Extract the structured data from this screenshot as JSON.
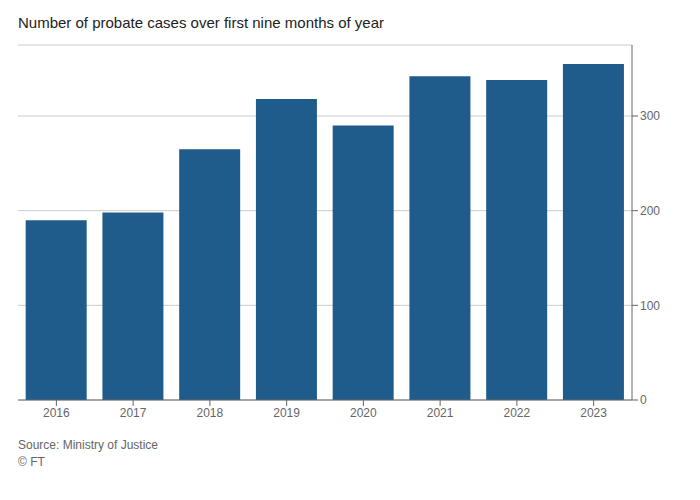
{
  "chart_data": {
    "type": "bar",
    "title": "Number of probate cases over first nine months of year",
    "categories": [
      "2016",
      "2017",
      "2018",
      "2019",
      "2020",
      "2021",
      "2022",
      "2023"
    ],
    "values": [
      190,
      198,
      265,
      318,
      290,
      342,
      338,
      355
    ],
    "color": "#1f5c8b",
    "ylim": [
      0,
      375
    ],
    "yticks": [
      0,
      100,
      200,
      300
    ],
    "grid": true,
    "annotations": [
      "Source: Ministry of Justice",
      "© FT"
    ]
  }
}
